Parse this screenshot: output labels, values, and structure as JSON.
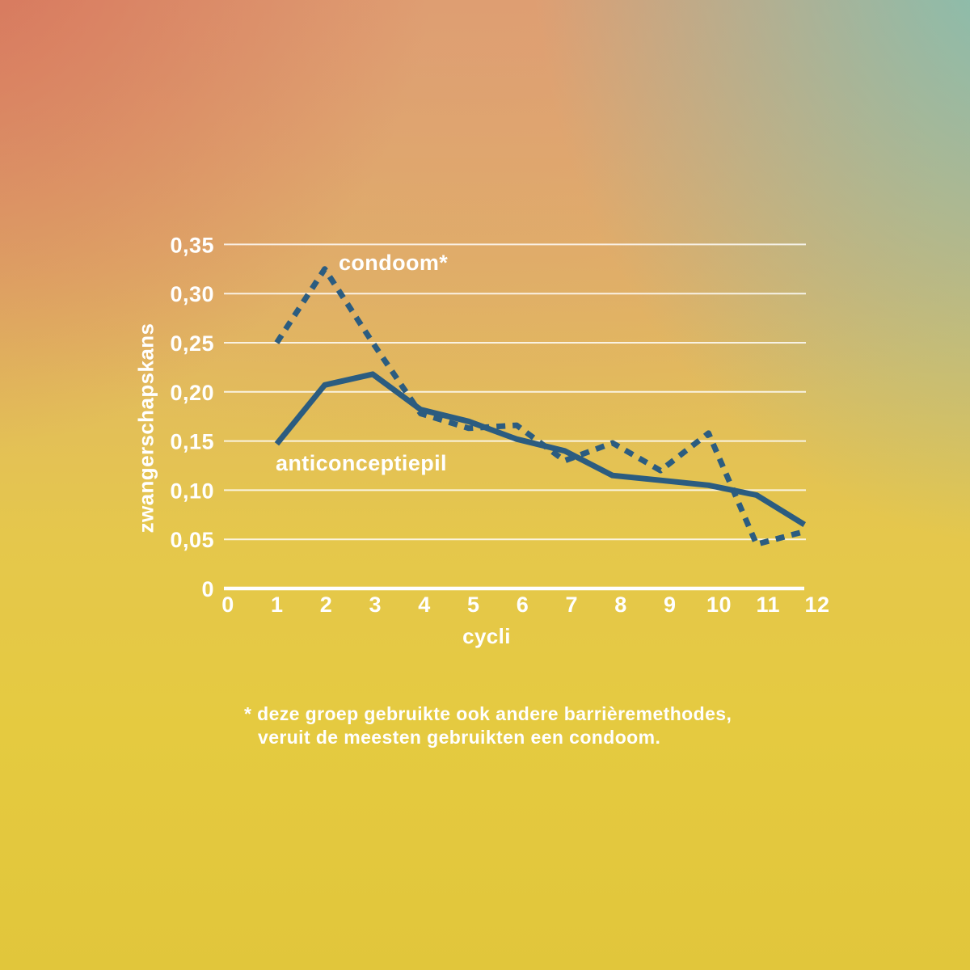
{
  "chart_data": {
    "type": "line",
    "title": "",
    "xlabel": "cycli",
    "ylabel": "zwangerschapskans",
    "xlim": [
      0,
      12
    ],
    "ylim": [
      0,
      0.35
    ],
    "grid": true,
    "legend_position": "inline-labels",
    "line_color": "#2B5C80",
    "grid_color": "rgba(255,255,255,0.82)",
    "x": [
      1,
      2,
      3,
      4,
      5,
      6,
      7,
      8,
      9,
      10,
      11,
      12
    ],
    "x_tick_labels": [
      "0",
      "1",
      "2",
      "3",
      "4",
      "5",
      "6",
      "7",
      "8",
      "9",
      "10",
      "11",
      "12"
    ],
    "y_tick_values": [
      0,
      0.05,
      0.1,
      0.15,
      0.2,
      0.25,
      0.3,
      0.35
    ],
    "y_tick_labels": [
      "0",
      "0,05",
      "0,10",
      "0,15",
      "0,20",
      "0,25",
      "0,30",
      "0,35"
    ],
    "series": [
      {
        "name": "condoom*",
        "style": "dashed",
        "values": [
          0.25,
          0.325,
          0.25,
          0.178,
          0.163,
          0.166,
          0.13,
          0.148,
          0.12,
          0.158,
          0.045,
          0.058
        ]
      },
      {
        "name": "anticonceptiepil",
        "style": "solid",
        "values": [
          0.147,
          0.207,
          0.218,
          0.182,
          0.17,
          0.152,
          0.14,
          0.115,
          0.11,
          0.105,
          0.095,
          0.065
        ]
      }
    ]
  },
  "footnote": {
    "line1": "* deze groep gebruikte ook andere barrièremethodes,",
    "line2": "veruit de meesten gebruikten een condoom."
  }
}
